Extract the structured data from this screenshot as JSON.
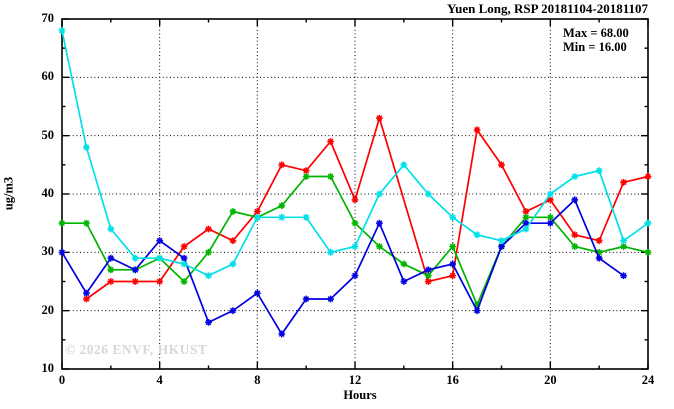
{
  "chart_data": {
    "type": "line",
    "title": "Yuen Long, RSP 20181104-20181107",
    "annotations": {
      "max_label": "Max = 68.00",
      "min_label": "Min = 16.00"
    },
    "xlabel": "Hours",
    "ylabel": "ug/m3",
    "watermark": "© 2026 ENVF, HKUST",
    "xlim": [
      0,
      24
    ],
    "ylim": [
      10,
      70
    ],
    "x_major_ticks": [
      0,
      4,
      8,
      12,
      16,
      20,
      24
    ],
    "x_minor_ticks": [
      2,
      6,
      10,
      14,
      18,
      22
    ],
    "y_major_ticks": [
      10,
      20,
      30,
      40,
      50,
      60,
      70
    ],
    "y_minor_ticks": [
      15,
      25,
      35,
      45,
      55,
      65
    ],
    "grid_x": [
      4,
      8,
      12,
      16,
      20
    ],
    "grid_y": [
      20,
      30,
      40,
      50,
      60
    ],
    "grid_style": "dotted",
    "legend": "none",
    "x": [
      0,
      1,
      2,
      3,
      4,
      5,
      6,
      7,
      8,
      9,
      10,
      11,
      12,
      13,
      14,
      15,
      16,
      17,
      18,
      19,
      20,
      21,
      22,
      23,
      24
    ],
    "series": [
      {
        "name": "series-red",
        "color": "#ff0000",
        "values": [
          null,
          22,
          25,
          25,
          25,
          31,
          34,
          32,
          37,
          45,
          44,
          49,
          39,
          53,
          null,
          25,
          26,
          51,
          45,
          37,
          39,
          33,
          32,
          42,
          43
        ]
      },
      {
        "name": "series-green",
        "color": "#00b400",
        "values": [
          35,
          35,
          27,
          27,
          29,
          25,
          30,
          37,
          36,
          38,
          43,
          43,
          35,
          31,
          28,
          26,
          31,
          21,
          31,
          36,
          36,
          31,
          30,
          31,
          30
        ]
      },
      {
        "name": "series-blue",
        "color": "#0000e0",
        "values": [
          30,
          23,
          29,
          27,
          32,
          29,
          18,
          20,
          23,
          16,
          22,
          22,
          26,
          35,
          25,
          27,
          28,
          20,
          31,
          35,
          35,
          39,
          29,
          26,
          null
        ]
      },
      {
        "name": "series-cyan",
        "color": "#00e0e8",
        "values": [
          68,
          48,
          34,
          29,
          29,
          28,
          26,
          28,
          36,
          36,
          36,
          30,
          31,
          40,
          45,
          40,
          36,
          33,
          32,
          34,
          40,
          43,
          44,
          32,
          35
        ]
      }
    ]
  }
}
